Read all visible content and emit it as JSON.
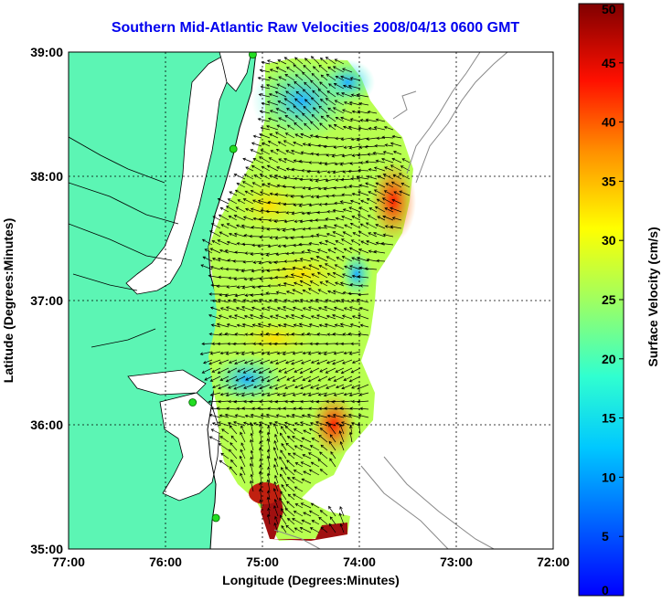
{
  "title": "Southern Mid-Atlantic Raw Velocities 2008/04/13 0600 GMT",
  "axes": {
    "xlabel": "Longitude (Degrees:Minutes)",
    "ylabel": "Latitude (Degrees:Minutes)",
    "xticks": [
      "77:00",
      "76:00",
      "75:00",
      "74:00",
      "73:00",
      "72:00"
    ],
    "yticks": [
      "39:00",
      "38:00",
      "37:00",
      "36:00",
      "35:00"
    ],
    "xrange": [
      -77,
      -72
    ],
    "yrange": [
      35,
      39
    ],
    "grid": true
  },
  "colorbar": {
    "label": "Surface Velocity (cm/s)",
    "ticks": [
      "50",
      "45",
      "40",
      "35",
      "30",
      "25",
      "20",
      "15",
      "10",
      "5",
      "0"
    ],
    "range": [
      0,
      50
    ],
    "colormap": "jet"
  },
  "colors": {
    "land": "#5cf5b4",
    "title": "#0000ee",
    "station": "#22dd22",
    "bathymetry": "#888888"
  },
  "stations": [
    {
      "lon": -75.1,
      "lat": 38.98
    },
    {
      "lon": -75.3,
      "lat": 38.22
    },
    {
      "lon": -75.72,
      "lat": 36.18
    },
    {
      "lon": -75.48,
      "lat": 35.25
    }
  ]
}
